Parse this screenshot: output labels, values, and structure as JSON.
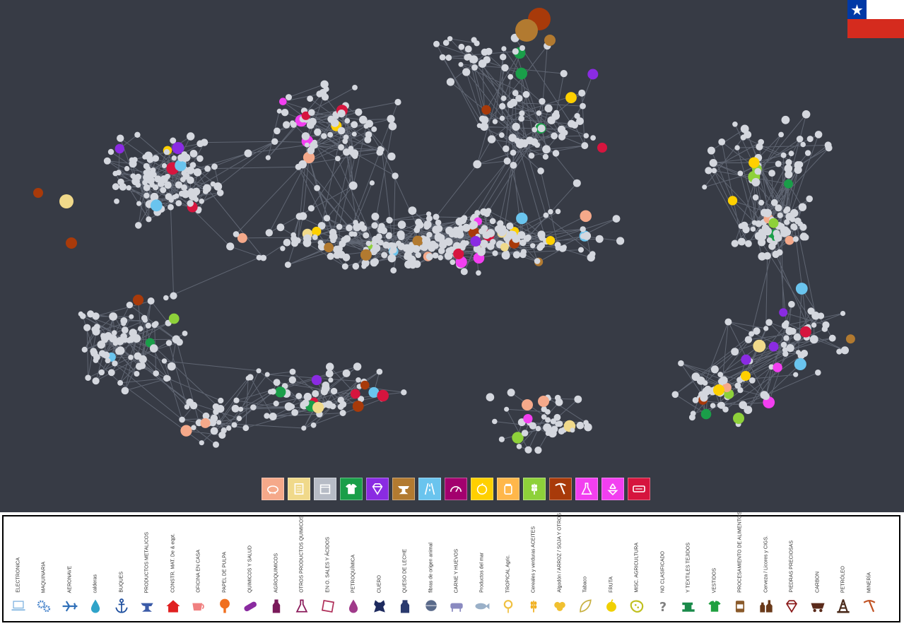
{
  "network": {
    "background": "#373b45",
    "edge_color": "#6d7482",
    "node_default_color": "#d4d7de",
    "colored_nodes": [
      {
        "id": "c1",
        "color": "#a83a0a"
      },
      {
        "id": "c2",
        "color": "#b27a30"
      },
      {
        "id": "c3",
        "color": "#b27a30"
      },
      {
        "id": "c4",
        "color": "#8a2be2"
      },
      {
        "id": "c5",
        "color": "#1a9e49"
      },
      {
        "id": "c6",
        "color": "#f23ff0"
      },
      {
        "id": "c7",
        "color": "#f0d98a"
      },
      {
        "id": "c8",
        "color": "#a83a0a"
      },
      {
        "id": "c9",
        "color": "#ffd000"
      },
      {
        "id": "c10",
        "color": "#d6153e"
      },
      {
        "id": "c11",
        "color": "#f5a98a"
      },
      {
        "id": "c12",
        "color": "#8ed13a"
      },
      {
        "id": "c13",
        "color": "#6ac4ee"
      }
    ]
  },
  "flag": {
    "country": "Chile",
    "colors": [
      "#0039a6",
      "#ffffff",
      "#d52b1e"
    ]
  },
  "sector_buttons": [
    {
      "name": "animals",
      "icon": "pig-icon",
      "color": "#f5a98a"
    },
    {
      "name": "paper",
      "icon": "document-icon",
      "color": "#f0d98a"
    },
    {
      "name": "boxes",
      "icon": "box-icon",
      "color": "#b7bcc6"
    },
    {
      "name": "garments",
      "icon": "shirt-icon",
      "color": "#1a9e49"
    },
    {
      "name": "stones",
      "icon": "diamond-icon",
      "color": "#8a2be2"
    },
    {
      "name": "metals",
      "icon": "anvil-icon",
      "color": "#b27a30"
    },
    {
      "name": "roads",
      "icon": "road-icon",
      "color": "#6ac4ee"
    },
    {
      "name": "instruments",
      "icon": "gauge-icon",
      "color": "#a3006e"
    },
    {
      "name": "food",
      "icon": "fruit-icon",
      "color": "#ffd000"
    },
    {
      "name": "processed-food",
      "icon": "jar-icon",
      "color": "#ffb74a"
    },
    {
      "name": "agriculture",
      "icon": "wheat-icon",
      "color": "#8ed13a"
    },
    {
      "name": "mining",
      "icon": "pickaxe-icon",
      "color": "#a83a0a"
    },
    {
      "name": "chemicals",
      "icon": "flask-icon",
      "color": "#f23ff0"
    },
    {
      "name": "recycling",
      "icon": "recycle-icon",
      "color": "#f23ff0"
    },
    {
      "name": "electronics",
      "icon": "chip-icon",
      "color": "#d6153e"
    }
  ],
  "legend": [
    {
      "label": "ELECTRONICA",
      "icon": "laptop-icon",
      "color": "#7fb3e0"
    },
    {
      "label": "MAQUINARIA",
      "icon": "gears-icon",
      "color": "#3d7dc8"
    },
    {
      "label": "AERONAVE",
      "icon": "airplane-icon",
      "color": "#2f6fb8"
    },
    {
      "label": "calderas",
      "icon": "drop-icon",
      "color": "#2fa3c9"
    },
    {
      "label": "BUQUES",
      "icon": "anchor-icon",
      "color": "#1d4e9e"
    },
    {
      "label": "PRODUCTOS METALICOS",
      "icon": "anvil-icon",
      "color": "#3b5ba8"
    },
    {
      "label": "CONSTR. MAT. De & eqpt.",
      "icon": "house-icon",
      "color": "#e02020"
    },
    {
      "label": "OFICINA EN CASA",
      "icon": "cup-icon",
      "color": "#f08080"
    },
    {
      "label": "PAPEL DE PULPA",
      "icon": "tree-icon",
      "color": "#f07020"
    },
    {
      "label": "QUIMICOS Y SALUD",
      "icon": "pill-icon",
      "color": "#8a2ba0"
    },
    {
      "label": "AGROQUIMICOS",
      "icon": "bottle-icon",
      "color": "#7a1a5a"
    },
    {
      "label": "OTROS PRODUCTOS QUIMICOS",
      "icon": "flask-icon",
      "color": "#8a1a5a"
    },
    {
      "label": "EN O. SALES Y ÁCIDOS",
      "icon": "square-icon",
      "color": "#b0305a"
    },
    {
      "label": "PETROQUÍMICA",
      "icon": "drop-icon",
      "color": "#a03a8a"
    },
    {
      "label": "CUERO",
      "icon": "hide-icon",
      "color": "#1d2a5e"
    },
    {
      "label": "QUESO DE LECHE",
      "icon": "milk-icon",
      "color": "#2a3a6e"
    },
    {
      "label": "fibras de origen animal",
      "icon": "wool-icon",
      "color": "#5a6a8a"
    },
    {
      "label": "CARNE Y HUEVOS",
      "icon": "cow-icon",
      "color": "#8a8ac0"
    },
    {
      "label": "Productos del mar",
      "icon": "fish-icon",
      "color": "#9ab0c8"
    },
    {
      "label": "TROPICAL Agric.",
      "icon": "flower-icon",
      "color": "#f0c040"
    },
    {
      "label": "Cereales y verduras ACEITES",
      "icon": "wheat-icon",
      "color": "#f0b020"
    },
    {
      "label": "Algodón / ARROZ / SOJA Y OTROS",
      "icon": "cotton-icon",
      "color": "#f0c030"
    },
    {
      "label": "Tabaco",
      "icon": "leaf-icon",
      "color": "#c8b040"
    },
    {
      "label": "FRUTA",
      "icon": "apple-icon",
      "color": "#f0d000"
    },
    {
      "label": "MISC. AGRICULTURA",
      "icon": "misc-icon",
      "color": "#c0c020"
    },
    {
      "label": "NO CLASIFICADO",
      "icon": "question-icon",
      "color": "#808080"
    },
    {
      "label": "Y TEXTILES TEJIDOS",
      "icon": "sewing-machine-icon",
      "color": "#1a8a4a"
    },
    {
      "label": "VESTIDOS",
      "icon": "shirt-icon",
      "color": "#20a040"
    },
    {
      "label": "PROCESAMIENTO DE ALIMENTOS",
      "icon": "can-icon",
      "color": "#8a5a2a"
    },
    {
      "label": "Cerveza / Licores y CIGS.",
      "icon": "bottles-icon",
      "color": "#6a3a1a"
    },
    {
      "label": "PIEDRAS PRECIOSAS",
      "icon": "diamond-icon",
      "color": "#8a1a1a"
    },
    {
      "label": "CARBON",
      "icon": "cart-icon",
      "color": "#5a2a1a"
    },
    {
      "label": "PETRÓLEO",
      "icon": "derrick-icon",
      "color": "#4a2a1a"
    },
    {
      "label": "MINERÍA",
      "icon": "pickaxe-icon",
      "color": "#c05020"
    }
  ]
}
